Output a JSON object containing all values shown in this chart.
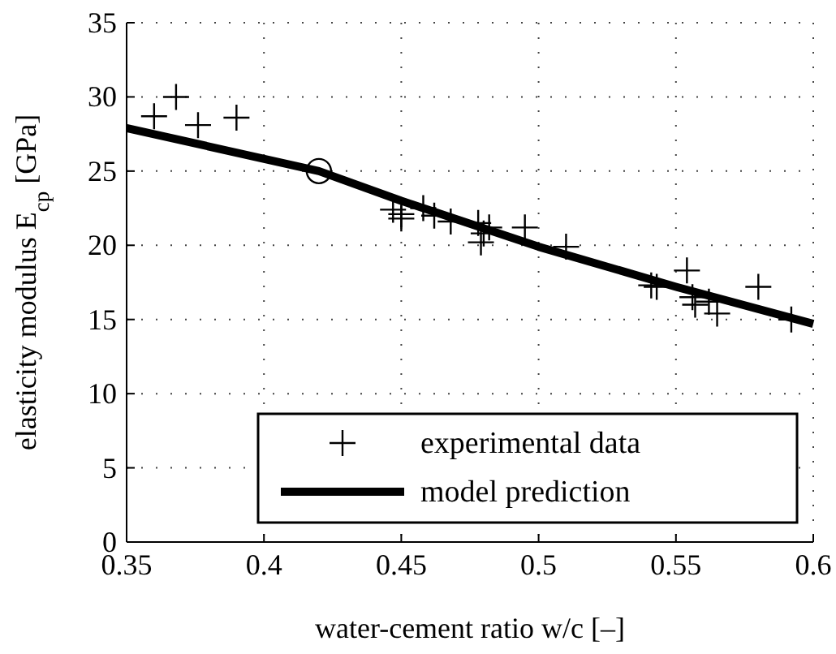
{
  "chart_data": {
    "type": "scatter",
    "xlabel": "water-cement ratio w/c [–]",
    "ylabel": "elasticity modulus E$_{cp}$ [GPa]",
    "xlim": [
      0.35,
      0.6
    ],
    "xticks": [
      0.35,
      0.4,
      0.45,
      0.5,
      0.55,
      0.6
    ],
    "ylim": [
      0,
      35
    ],
    "yticks": [
      0,
      5,
      10,
      15,
      20,
      25,
      30,
      35
    ],
    "grid": true,
    "legend": "bottom right",
    "series": [
      {
        "name": "experimental data",
        "marker": "cross",
        "color": "#000000",
        "x": [
          0.36,
          0.368,
          0.376,
          0.39,
          0.447,
          0.45,
          0.45,
          0.458,
          0.462,
          0.468,
          0.478,
          0.479,
          0.48,
          0.482,
          0.495,
          0.51,
          0.541,
          0.543,
          0.554,
          0.556,
          0.557,
          0.562,
          0.565,
          0.58,
          0.592
        ],
        "values": [
          28.7,
          30,
          28.1,
          28.6,
          22.4,
          22.1,
          21.8,
          22.5,
          22.0,
          21.6,
          21.5,
          20.2,
          20.8,
          21.2,
          21.2,
          19.9,
          17.3,
          17.2,
          18.3,
          16.5,
          16.0,
          16.2,
          15.4,
          17.2,
          15.0
        ]
      },
      {
        "name": "model prediction",
        "type": "line",
        "marker": "none",
        "color": "#000000",
        "x": [
          0.35,
          0.42,
          0.45,
          0.5,
          0.55,
          0.6
        ],
        "values": [
          27.9,
          25,
          23,
          19.9,
          17.2,
          14.7
        ]
      },
      {
        "marker": "circle",
        "color": "#000000",
        "x": [
          0.42
        ],
        "values": [
          25
        ]
      }
    ]
  }
}
